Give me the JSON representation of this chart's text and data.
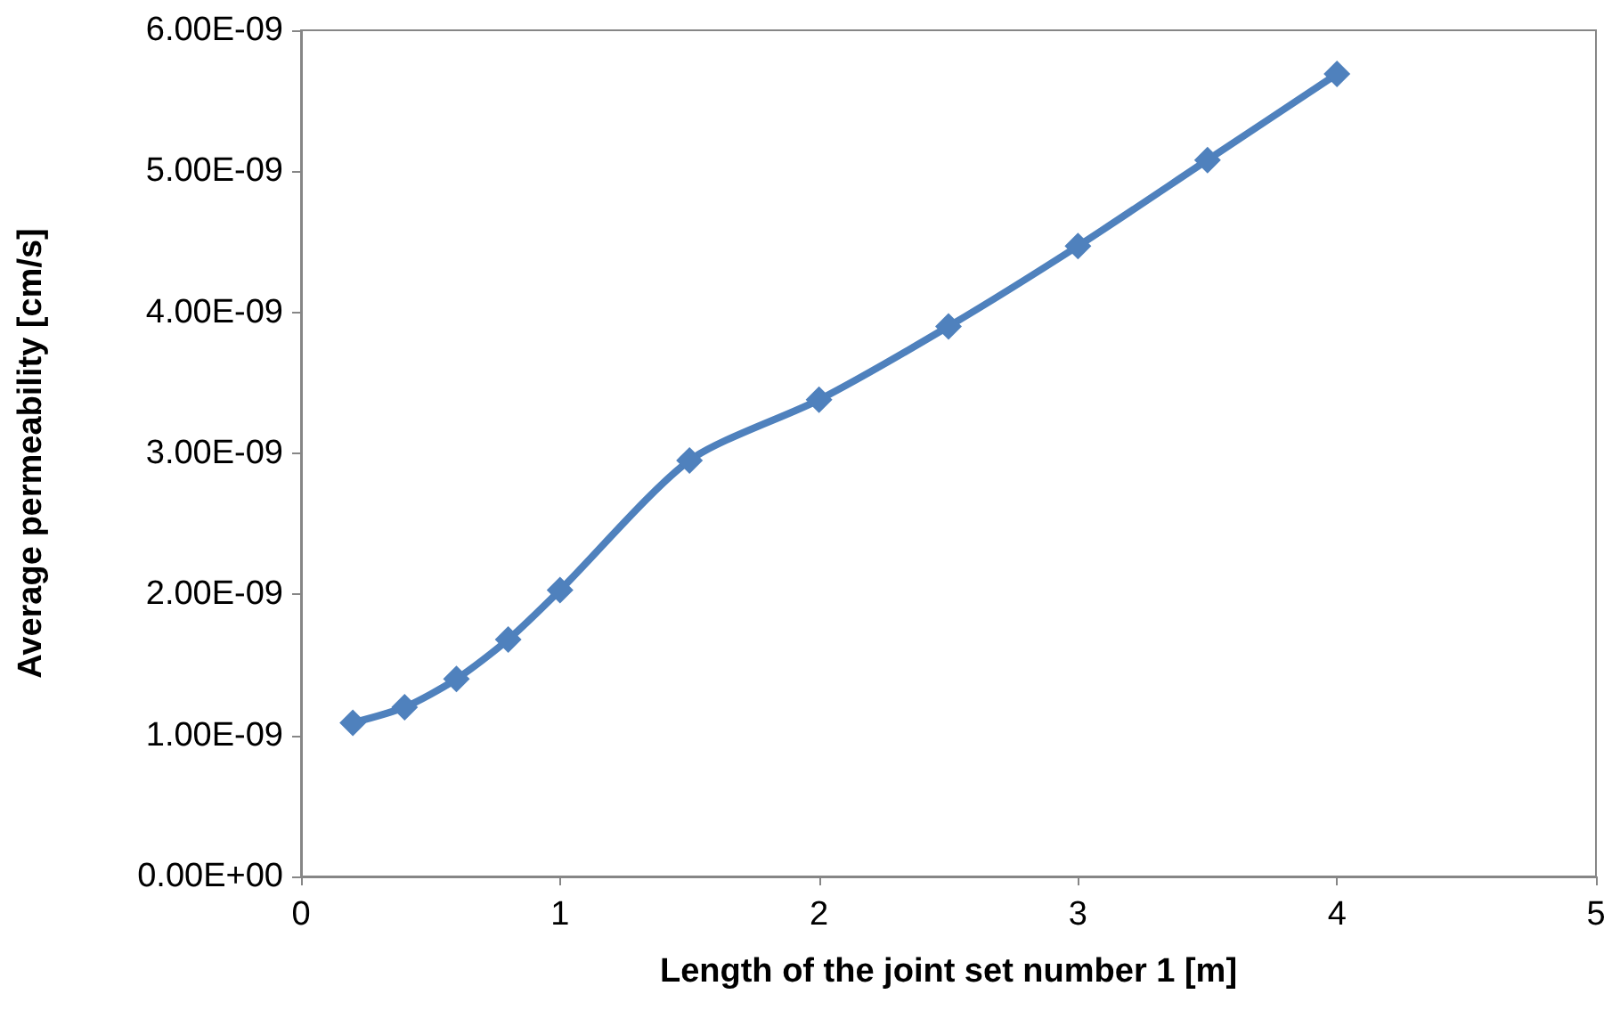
{
  "chart_data": {
    "type": "line",
    "xlabel": "Length of the joint set number 1 [m]",
    "ylabel": "Average permeability [cm/s]",
    "x": [
      0.2,
      0.4,
      0.6,
      0.8,
      1,
      1.5,
      2,
      2.5,
      3,
      3.5,
      4
    ],
    "series": [
      {
        "color": "#4f81bd",
        "values": [
          1.09e-09,
          1.2e-09,
          1.4e-09,
          1.68e-09,
          2.03e-09,
          2.95e-09,
          3.38e-09,
          3.9e-09,
          4.47e-09,
          5.08e-09,
          5.69e-09
        ]
      }
    ],
    "xlim": [
      0,
      5
    ],
    "xticks": [
      0,
      1,
      2,
      3,
      4,
      5
    ],
    "ylim": [
      0,
      6e-09
    ],
    "yticks": [
      {
        "value": 0,
        "label": "0.00E+00"
      },
      {
        "value": 1e-09,
        "label": "1.00E-09"
      },
      {
        "value": 2e-09,
        "label": "2.00E-09"
      },
      {
        "value": 3e-09,
        "label": "3.00E-09"
      },
      {
        "value": 4e-09,
        "label": "4.00E-09"
      },
      {
        "value": 5e-09,
        "label": "5.00E-09"
      },
      {
        "value": 6e-09,
        "label": "6.00E-09"
      }
    ],
    "grid": false,
    "marker": "diamond",
    "line_style": "solid"
  }
}
